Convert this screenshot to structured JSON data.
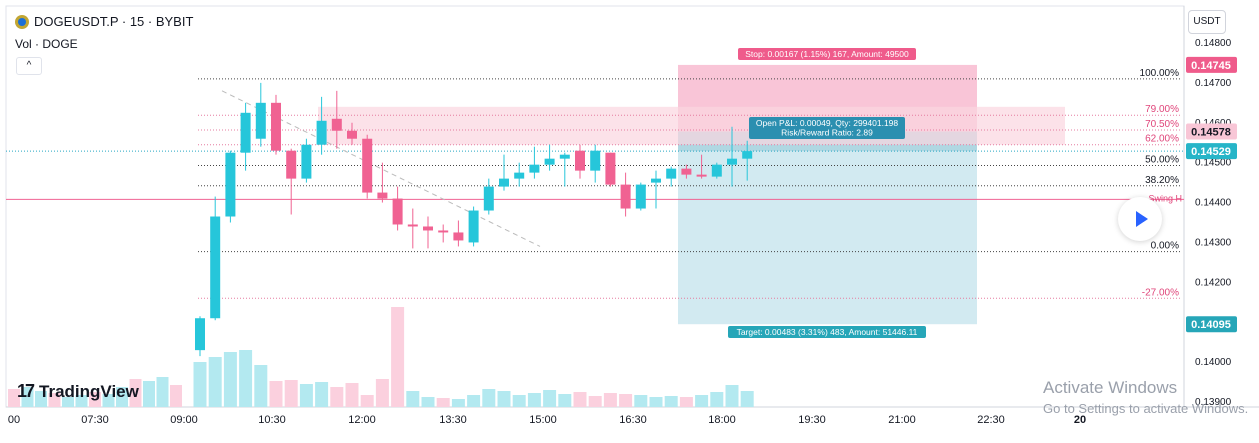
{
  "header": {
    "symbol": "DOGEUSDT.P · 15 · BYBIT",
    "volume_indicator": "Vol · DOGE",
    "collapse_label": "^"
  },
  "toolbar": {
    "currency": "USDT"
  },
  "branding": {
    "logo_mark": "17",
    "logo_text": "TradingView"
  },
  "overlay": {
    "watermark_title": "Activate Windows",
    "watermark_subtitle": "Go to Settings to activate Windows."
  },
  "colors": {
    "up": "#26c6da",
    "down": "#f06292",
    "stop_zone": "#f8bbd0",
    "target_zone": "#cde8ef",
    "fib_band": "#fbd5e0",
    "swing_line": "#f06292",
    "current_price": "#26a6c3",
    "stop_label": "#ef5b8b",
    "target_label": "#26a6b8",
    "grid_dotted": "#555555"
  },
  "chart_data": {
    "type": "candlestick",
    "ylim": [
      0.139,
      0.1481
    ],
    "y_ticks": [
      0.139,
      0.14,
      0.141,
      0.142,
      0.143,
      0.144,
      0.145,
      0.146,
      0.147,
      0.148
    ],
    "y_tick_labels": [
      "0.13900",
      "0.14000",
      "0.14100",
      "0.14200",
      "0.14300",
      "0.14400",
      "0.14500",
      "0.14600",
      "0.14700",
      "0.14800"
    ],
    "x_labels": [
      "00",
      "07:30",
      "09:00",
      "10:30",
      "12:00",
      "13:30",
      "15:00",
      "16:30",
      "18:00",
      "19:30",
      "21:00",
      "22:30",
      "20"
    ],
    "candles": [
      {
        "o": 0.1403,
        "h": 0.14115,
        "l": 0.14015,
        "c": 0.1411
      },
      {
        "o": 0.1411,
        "h": 0.14415,
        "l": 0.14105,
        "c": 0.14365
      },
      {
        "o": 0.14365,
        "h": 0.1453,
        "l": 0.1435,
        "c": 0.14525
      },
      {
        "o": 0.14525,
        "h": 0.1465,
        "l": 0.1448,
        "c": 0.14625
      },
      {
        "o": 0.1456,
        "h": 0.147,
        "l": 0.1454,
        "c": 0.1465
      },
      {
        "o": 0.1465,
        "h": 0.1467,
        "l": 0.1452,
        "c": 0.1453
      },
      {
        "o": 0.1453,
        "h": 0.14535,
        "l": 0.1437,
        "c": 0.1446
      },
      {
        "o": 0.1446,
        "h": 0.1456,
        "l": 0.1445,
        "c": 0.14545
      },
      {
        "o": 0.14545,
        "h": 0.14665,
        "l": 0.1452,
        "c": 0.14605
      },
      {
        "o": 0.1461,
        "h": 0.1468,
        "l": 0.14535,
        "c": 0.1458
      },
      {
        "o": 0.1458,
        "h": 0.146,
        "l": 0.14545,
        "c": 0.1456
      },
      {
        "o": 0.1456,
        "h": 0.1457,
        "l": 0.1441,
        "c": 0.14425
      },
      {
        "o": 0.14425,
        "h": 0.145,
        "l": 0.144,
        "c": 0.1441
      },
      {
        "o": 0.1441,
        "h": 0.1444,
        "l": 0.1433,
        "c": 0.14345
      },
      {
        "o": 0.14345,
        "h": 0.14385,
        "l": 0.14285,
        "c": 0.1434
      },
      {
        "o": 0.1434,
        "h": 0.14365,
        "l": 0.14285,
        "c": 0.1433
      },
      {
        "o": 0.1433,
        "h": 0.14345,
        "l": 0.143,
        "c": 0.14325
      },
      {
        "o": 0.14325,
        "h": 0.14355,
        "l": 0.1429,
        "c": 0.14305
      },
      {
        "o": 0.143,
        "h": 0.1439,
        "l": 0.1429,
        "c": 0.1438
      },
      {
        "o": 0.1438,
        "h": 0.1446,
        "l": 0.1437,
        "c": 0.1444
      },
      {
        "o": 0.1444,
        "h": 0.1452,
        "l": 0.1443,
        "c": 0.1446
      },
      {
        "o": 0.1446,
        "h": 0.145,
        "l": 0.1444,
        "c": 0.14475
      },
      {
        "o": 0.14475,
        "h": 0.1454,
        "l": 0.1446,
        "c": 0.14495
      },
      {
        "o": 0.14495,
        "h": 0.14545,
        "l": 0.1448,
        "c": 0.1451
      },
      {
        "o": 0.1451,
        "h": 0.14525,
        "l": 0.1444,
        "c": 0.1452
      },
      {
        "o": 0.1453,
        "h": 0.14545,
        "l": 0.1446,
        "c": 0.1448
      },
      {
        "o": 0.1448,
        "h": 0.14545,
        "l": 0.1445,
        "c": 0.1453
      },
      {
        "o": 0.14525,
        "h": 0.14525,
        "l": 0.1444,
        "c": 0.14445
      },
      {
        "o": 0.14445,
        "h": 0.14475,
        "l": 0.14365,
        "c": 0.14385
      },
      {
        "o": 0.14385,
        "h": 0.1445,
        "l": 0.1438,
        "c": 0.14445
      },
      {
        "o": 0.1445,
        "h": 0.1448,
        "l": 0.14385,
        "c": 0.1446
      },
      {
        "o": 0.1446,
        "h": 0.1449,
        "l": 0.1444,
        "c": 0.14485
      },
      {
        "o": 0.14485,
        "h": 0.14495,
        "l": 0.1446,
        "c": 0.1447
      },
      {
        "o": 0.1447,
        "h": 0.1452,
        "l": 0.1446,
        "c": 0.14465
      },
      {
        "o": 0.14465,
        "h": 0.145,
        "l": 0.1446,
        "c": 0.14495
      },
      {
        "o": 0.14495,
        "h": 0.1459,
        "l": 0.1444,
        "c": 0.1451
      },
      {
        "o": 0.1451,
        "h": 0.14555,
        "l": 0.14455,
        "c": 0.14529
      }
    ],
    "volume": [
      {
        "v": 0.45,
        "up": true
      },
      {
        "v": 0.5,
        "up": true
      },
      {
        "v": 0.55,
        "up": true
      },
      {
        "v": 0.57,
        "up": true
      },
      {
        "v": 0.42,
        "up": true
      },
      {
        "v": 0.26,
        "up": false
      },
      {
        "v": 0.27,
        "up": false
      },
      {
        "v": 0.23,
        "up": true
      },
      {
        "v": 0.25,
        "up": true
      },
      {
        "v": 0.2,
        "up": false
      },
      {
        "v": 0.24,
        "up": false
      },
      {
        "v": 0.12,
        "up": false
      },
      {
        "v": 0.28,
        "up": false
      },
      {
        "v": 1.0,
        "up": false
      },
      {
        "v": 0.16,
        "up": true
      },
      {
        "v": 0.1,
        "up": true
      },
      {
        "v": 0.09,
        "up": false
      },
      {
        "v": 0.08,
        "up": true
      },
      {
        "v": 0.12,
        "up": true
      },
      {
        "v": 0.18,
        "up": true
      },
      {
        "v": 0.16,
        "up": true
      },
      {
        "v": 0.12,
        "up": true
      },
      {
        "v": 0.14,
        "up": true
      },
      {
        "v": 0.17,
        "up": true
      },
      {
        "v": 0.13,
        "up": true
      },
      {
        "v": 0.15,
        "up": false
      },
      {
        "v": 0.11,
        "up": false
      },
      {
        "v": 0.14,
        "up": false
      },
      {
        "v": 0.13,
        "up": false
      },
      {
        "v": 0.12,
        "up": true
      },
      {
        "v": 0.1,
        "up": true
      },
      {
        "v": 0.11,
        "up": true
      },
      {
        "v": 0.1,
        "up": false
      },
      {
        "v": 0.12,
        "up": true
      },
      {
        "v": 0.15,
        "up": true
      },
      {
        "v": 0.22,
        "up": true
      },
      {
        "v": 0.16,
        "up": true
      }
    ],
    "fib_levels": [
      {
        "label": "100.00%",
        "price": 0.1471
      },
      {
        "label": "79.00%",
        "price": 0.14619
      },
      {
        "label": "70.50%",
        "price": 0.14582
      },
      {
        "label": "62.00%",
        "price": 0.14545
      },
      {
        "label": "50.00%",
        "price": 0.14493
      },
      {
        "label": "38.20%",
        "price": 0.14442
      },
      {
        "label": "0.00%",
        "price": 0.14277
      },
      {
        "label": "-27.00%",
        "price": 0.1416
      }
    ],
    "fib_band": [
      0.14545,
      0.1464
    ],
    "swing_line": {
      "label": "Swing H",
      "price": 0.14408
    },
    "current_price": {
      "label": "0.14529",
      "price": 0.14529
    },
    "position": {
      "entry": 0.14578,
      "stop": 0.14745,
      "target": 0.14095,
      "stop_text": "Stop: 0.00167 (1.15%) 167, Amount: 49500",
      "target_text": "Target: 0.00483 (3.31%) 483, Amount: 51446.11",
      "pnl_line1": "Open P&L: 0.00049, Qty: 299401.198",
      "pnl_line2": "Risk/Reward Ratio: 2.89"
    },
    "price_tags": [
      {
        "label": "0.14745",
        "price": 0.14745,
        "kind": "stop"
      },
      {
        "label": "0.14578",
        "price": 0.14578,
        "kind": "entry"
      },
      {
        "label": "0.14529",
        "price": 0.14529,
        "kind": "current"
      },
      {
        "label": "0.14095",
        "price": 0.14095,
        "kind": "target"
      }
    ]
  }
}
